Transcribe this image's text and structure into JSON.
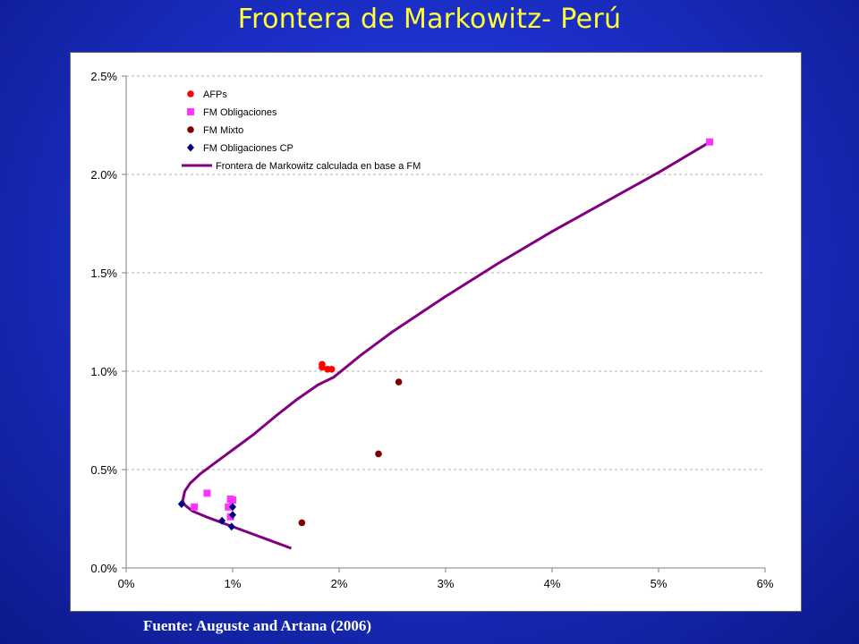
{
  "title": "Frontera de Markowitz- Perú",
  "source": "Fuente: Auguste and Artana (2006)",
  "chart_data": {
    "type": "scatter",
    "xlim": [
      0,
      6
    ],
    "ylim": [
      0,
      2.5
    ],
    "x_ticks": [
      0,
      1,
      2,
      3,
      4,
      5,
      6
    ],
    "y_ticks": [
      0,
      0.5,
      1.0,
      1.5,
      2.0,
      2.5
    ],
    "x_tick_labels": [
      "0%",
      "1%",
      "2%",
      "3%",
      "4%",
      "5%",
      "6%"
    ],
    "y_tick_labels": [
      "0.0%",
      "0.5%",
      "1.0%",
      "1.5%",
      "2.0%",
      "2.5%"
    ],
    "grid": "horizontal dashed",
    "legend_position": "top-left",
    "series": [
      {
        "name": "AFPs",
        "marker": "circle",
        "color": "#ff0000",
        "points": [
          [
            1.84,
            1.035
          ],
          [
            1.84,
            1.02
          ],
          [
            1.89,
            1.01
          ],
          [
            1.93,
            1.01
          ]
        ]
      },
      {
        "name": "FM Obligaciones",
        "marker": "square",
        "color": "#ff33ff",
        "points": [
          [
            0.64,
            0.31
          ],
          [
            0.76,
            0.38
          ],
          [
            0.96,
            0.31
          ],
          [
            0.98,
            0.35
          ],
          [
            1.0,
            0.345
          ],
          [
            0.98,
            0.26
          ],
          [
            5.48,
            2.165
          ]
        ]
      },
      {
        "name": "FM Mixto",
        "marker": "circle",
        "color": "#800000",
        "points": [
          [
            1.65,
            0.23
          ],
          [
            2.37,
            0.58
          ],
          [
            2.56,
            0.945
          ]
        ]
      },
      {
        "name": "FM Obligaciones CP",
        "marker": "diamond",
        "color": "#000080",
        "points": [
          [
            0.52,
            0.325
          ],
          [
            0.9,
            0.24
          ],
          [
            0.99,
            0.21
          ],
          [
            1.0,
            0.27
          ],
          [
            1.0,
            0.31
          ]
        ]
      },
      {
        "name": "Frontera de Markowitz calculada en base a FM",
        "marker": "line",
        "color": "#800080",
        "points": [
          [
            1.55,
            0.1
          ],
          [
            1.35,
            0.14
          ],
          [
            1.15,
            0.18
          ],
          [
            0.95,
            0.22
          ],
          [
            0.75,
            0.26
          ],
          [
            0.62,
            0.29
          ],
          [
            0.55,
            0.32
          ],
          [
            0.53,
            0.34
          ],
          [
            0.55,
            0.39
          ],
          [
            0.6,
            0.43
          ],
          [
            0.7,
            0.48
          ],
          [
            0.85,
            0.54
          ],
          [
            1.0,
            0.6
          ],
          [
            1.2,
            0.68
          ],
          [
            1.4,
            0.77
          ],
          [
            1.6,
            0.855
          ],
          [
            1.8,
            0.93
          ],
          [
            1.95,
            0.97
          ],
          [
            2.2,
            1.08
          ],
          [
            2.5,
            1.2
          ],
          [
            3.0,
            1.38
          ],
          [
            3.5,
            1.55
          ],
          [
            4.0,
            1.71
          ],
          [
            4.5,
            1.86
          ],
          [
            5.0,
            2.01
          ],
          [
            5.5,
            2.17
          ]
        ]
      }
    ]
  }
}
